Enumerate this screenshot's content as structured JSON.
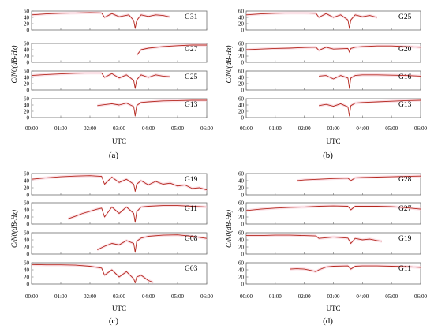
{
  "chart_data": [
    {
      "type": "line",
      "panel": "(a)",
      "xlabel": "UTC",
      "ylabel": "C/N0(dB-Hz)",
      "x_ticks": [
        "00:00",
        "01:00",
        "02:00",
        "03:00",
        "04:00",
        "05:00",
        "06:00"
      ],
      "xlim": [
        "00:00",
        "06:00"
      ],
      "ylim": [
        0,
        60
      ],
      "y_ticks": [
        0,
        20,
        40,
        60
      ],
      "series": [
        {
          "name": "G31",
          "x": [
            "00:00",
            "00:30",
            "01:00",
            "01:30",
            "02:00",
            "02:24",
            "02:30",
            "02:45",
            "03:00",
            "03:20",
            "03:30",
            "03:33",
            "03:36",
            "03:45",
            "04:00",
            "04:15",
            "04:30",
            "04:45"
          ],
          "y": [
            48,
            51,
            53,
            54,
            55,
            54,
            40,
            52,
            42,
            48,
            30,
            5,
            30,
            48,
            43,
            48,
            46,
            41
          ],
          "name_color": "#000"
        },
        {
          "name": "G27",
          "x": [
            "03:36",
            "03:45",
            "04:00",
            "04:30",
            "05:00",
            "05:30",
            "06:00"
          ],
          "y": [
            22,
            40,
            45,
            50,
            53,
            55,
            55
          ]
        },
        {
          "name": "G25",
          "x": [
            "00:00",
            "00:30",
            "01:00",
            "01:30",
            "02:00",
            "02:24",
            "02:30",
            "02:45",
            "03:00",
            "03:15",
            "03:30",
            "03:33",
            "03:36",
            "03:45",
            "04:00",
            "04:15",
            "04:30",
            "04:45"
          ],
          "y": [
            46,
            49,
            51,
            53,
            54,
            54,
            40,
            52,
            38,
            48,
            30,
            5,
            32,
            48,
            40,
            48,
            44,
            42
          ]
        },
        {
          "name": "G13",
          "x": [
            "02:15",
            "02:30",
            "02:45",
            "03:00",
            "03:15",
            "03:30",
            "03:33",
            "03:36",
            "03:45",
            "04:00",
            "04:30",
            "05:00",
            "05:30",
            "06:00"
          ],
          "y": [
            38,
            41,
            44,
            40,
            46,
            35,
            5,
            38,
            48,
            50,
            53,
            54,
            55,
            55
          ]
        }
      ]
    },
    {
      "type": "line",
      "panel": "(b)",
      "xlabel": "UTC",
      "ylabel": "C/N0(dB-Hz)",
      "x_ticks": [
        "00:00",
        "01:00",
        "02:00",
        "03:00",
        "04:00",
        "05:00",
        "06:00"
      ],
      "xlim": [
        "00:00",
        "06:00"
      ],
      "ylim": [
        0,
        60
      ],
      "y_ticks": [
        0,
        20,
        40,
        60
      ],
      "series": [
        {
          "name": "G25",
          "x": [
            "00:00",
            "00:30",
            "01:00",
            "01:30",
            "02:00",
            "02:24",
            "02:30",
            "02:45",
            "03:00",
            "03:15",
            "03:30",
            "03:33",
            "03:36",
            "03:45",
            "04:00",
            "04:15",
            "04:30"
          ],
          "y": [
            48,
            51,
            53,
            54,
            54,
            53,
            40,
            52,
            40,
            48,
            32,
            5,
            32,
            48,
            42,
            46,
            40
          ]
        },
        {
          "name": "G20",
          "x": [
            "00:00",
            "00:30",
            "01:00",
            "01:30",
            "02:00",
            "02:24",
            "02:30",
            "02:45",
            "03:00",
            "03:30",
            "03:33",
            "03:36",
            "03:45",
            "04:00",
            "04:30",
            "05:00",
            "05:30",
            "06:00"
          ],
          "y": [
            40,
            42,
            44,
            45,
            47,
            48,
            38,
            48,
            42,
            44,
            32,
            44,
            48,
            50,
            52,
            52,
            50,
            48
          ]
        },
        {
          "name": "G16",
          "x": [
            "02:30",
            "02:45",
            "03:00",
            "03:15",
            "03:30",
            "03:33",
            "03:36",
            "03:45",
            "04:00",
            "04:30",
            "05:00",
            "05:30",
            "06:00"
          ],
          "y": [
            44,
            46,
            35,
            46,
            38,
            5,
            38,
            46,
            48,
            48,
            47,
            46,
            44
          ]
        },
        {
          "name": "G13",
          "x": [
            "02:30",
            "02:45",
            "03:00",
            "03:15",
            "03:30",
            "03:33",
            "03:36",
            "03:45",
            "04:00",
            "04:30",
            "05:00",
            "05:30",
            "06:00"
          ],
          "y": [
            38,
            42,
            36,
            44,
            34,
            5,
            38,
            46,
            48,
            50,
            52,
            54,
            55
          ]
        }
      ]
    },
    {
      "type": "line",
      "panel": "(c)",
      "xlabel": "UTC",
      "ylabel": "C/N0(dB-Hz)",
      "x_ticks": [
        "00:00",
        "01:00",
        "02:00",
        "03:00",
        "04:00",
        "05:00",
        "06:00"
      ],
      "xlim": [
        "00:00",
        "06:00"
      ],
      "ylim": [
        0,
        60
      ],
      "y_ticks": [
        0,
        20,
        40,
        60
      ],
      "series": [
        {
          "name": "G19",
          "x": [
            "00:00",
            "00:30",
            "01:00",
            "01:30",
            "02:00",
            "02:24",
            "02:30",
            "02:45",
            "03:00",
            "03:15",
            "03:30",
            "03:33",
            "03:36",
            "03:45",
            "04:00",
            "04:15",
            "04:30",
            "04:45",
            "05:00",
            "05:15",
            "05:30",
            "05:45",
            "06:00"
          ],
          "y": [
            44,
            48,
            51,
            53,
            54,
            52,
            30,
            50,
            35,
            44,
            30,
            10,
            30,
            40,
            28,
            38,
            30,
            33,
            25,
            28,
            18,
            20,
            14
          ]
        },
        {
          "name": "G11",
          "x": [
            "01:15",
            "01:30",
            "01:45",
            "02:00",
            "02:15",
            "02:24",
            "02:30",
            "02:45",
            "03:00",
            "03:15",
            "03:30",
            "03:33",
            "03:36",
            "03:45",
            "04:00",
            "04:30",
            "05:00",
            "05:30",
            "06:00"
          ],
          "y": [
            15,
            22,
            30,
            36,
            42,
            45,
            20,
            48,
            30,
            48,
            30,
            5,
            35,
            48,
            50,
            52,
            52,
            50,
            48
          ]
        },
        {
          "name": "G08",
          "x": [
            "02:15",
            "02:30",
            "02:45",
            "03:00",
            "03:15",
            "03:30",
            "03:33",
            "03:36",
            "03:45",
            "04:00",
            "04:30",
            "05:00",
            "05:30",
            "06:00"
          ],
          "y": [
            12,
            22,
            30,
            26,
            38,
            30,
            5,
            36,
            45,
            50,
            53,
            54,
            50,
            44
          ]
        },
        {
          "name": "G03",
          "x": [
            "00:00",
            "00:30",
            "01:00",
            "01:30",
            "02:00",
            "02:24",
            "02:30",
            "02:45",
            "03:00",
            "03:15",
            "03:30",
            "03:33",
            "03:36",
            "03:45",
            "04:00",
            "04:10"
          ],
          "y": [
            55,
            54,
            54,
            53,
            50,
            45,
            25,
            40,
            20,
            35,
            15,
            3,
            20,
            25,
            10,
            5
          ]
        }
      ]
    },
    {
      "type": "line",
      "panel": "(d)",
      "xlabel": "UTC",
      "ylabel": "C/N0(dB-Hz)",
      "x_ticks": [
        "00:00",
        "01:00",
        "02:00",
        "03:00",
        "04:00",
        "05:00",
        "06:00"
      ],
      "xlim": [
        "00:00",
        "06:00"
      ],
      "ylim": [
        0,
        60
      ],
      "y_ticks": [
        0,
        20,
        40,
        60
      ],
      "series": [
        {
          "name": "G28",
          "x": [
            "01:45",
            "02:00",
            "02:30",
            "03:00",
            "03:30",
            "03:36",
            "03:45",
            "04:00",
            "04:30",
            "05:00",
            "05:30",
            "06:00"
          ],
          "y": [
            40,
            42,
            44,
            46,
            47,
            40,
            48,
            49,
            50,
            51,
            52,
            53
          ]
        },
        {
          "name": "G27",
          "x": [
            "00:00",
            "00:30",
            "01:00",
            "01:30",
            "02:00",
            "02:30",
            "03:00",
            "03:30",
            "03:36",
            "03:45",
            "04:00",
            "04:30",
            "05:00",
            "05:30",
            "06:00"
          ],
          "y": [
            38,
            42,
            45,
            47,
            48,
            50,
            51,
            50,
            40,
            50,
            50,
            50,
            49,
            46,
            42
          ]
        },
        {
          "name": "G19",
          "x": [
            "00:00",
            "00:30",
            "01:00",
            "01:30",
            "02:00",
            "02:24",
            "02:30",
            "03:00",
            "03:30",
            "03:36",
            "03:45",
            "04:00",
            "04:15",
            "04:30",
            "04:40"
          ],
          "y": [
            52,
            52,
            53,
            53,
            52,
            51,
            44,
            48,
            45,
            30,
            44,
            40,
            42,
            38,
            36
          ]
        },
        {
          "name": "G11",
          "x": [
            "01:30",
            "01:45",
            "02:00",
            "02:15",
            "02:24",
            "02:30",
            "02:45",
            "03:00",
            "03:30",
            "03:36",
            "03:45",
            "04:00",
            "04:30",
            "05:00",
            "05:30",
            "06:00"
          ],
          "y": [
            42,
            43,
            42,
            38,
            35,
            40,
            48,
            50,
            51,
            42,
            50,
            51,
            51,
            50,
            49,
            47
          ]
        }
      ]
    }
  ]
}
